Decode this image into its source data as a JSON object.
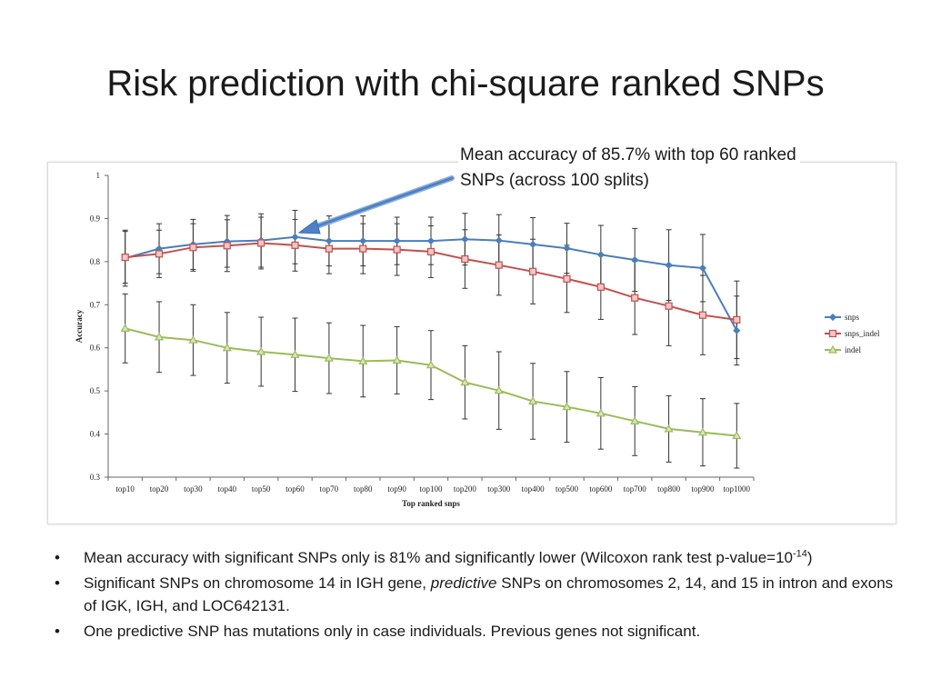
{
  "slide": {
    "title": "Risk prediction with chi-square ranked SNPs",
    "callout": "Mean accuracy of 85.7% with top 60 ranked SNPs (across 100 splits)",
    "bullets": [
      {
        "dot": "•",
        "parts": {
          "a": "Mean accuracy with significant SNPs only is 81% and significantly lower (Wilcoxon rank test p-value=10",
          "sup": "-14",
          "b": ")"
        }
      },
      {
        "dot": "•",
        "parts": {
          "a": "Significant SNPs on chromosome 14 in IGH gene, ",
          "em": "predictive",
          "b": " SNPs on chromosomes 2, 14, and 15 in intron and exons of IGK, IGH, and LOC642131."
        }
      },
      {
        "dot": "•",
        "parts": {
          "a": "One predictive SNP has mutations only in case individuals. Previous genes not significant."
        }
      }
    ]
  },
  "chart_data": {
    "type": "line",
    "title": "",
    "xlabel": "Top ranked snps",
    "ylabel": "Accuracy",
    "ylim": [
      0.3,
      1
    ],
    "yticks": [
      "1",
      "0.9",
      "0.8",
      "0.7",
      "0.6",
      "0.5",
      "0.4",
      "0.3"
    ],
    "legend_position": "right",
    "grid": false,
    "categories": [
      "top10",
      "top20",
      "top30",
      "top40",
      "top50",
      "top60",
      "top70",
      "top80",
      "top90",
      "top100",
      "top200",
      "top300",
      "top400",
      "top500",
      "top600",
      "top700",
      "top800",
      "top900",
      "top1000"
    ],
    "series": [
      {
        "name": "snps",
        "color": "#4a7ebb",
        "marker": "diamond",
        "values": [
          0.808,
          0.83,
          0.84,
          0.847,
          0.849,
          0.857,
          0.848,
          0.848,
          0.848,
          0.848,
          0.852,
          0.849,
          0.84,
          0.831,
          0.816,
          0.804,
          0.792,
          0.785,
          0.64
        ],
        "error": [
          0.065,
          0.058,
          0.058,
          0.06,
          0.062,
          0.062,
          0.058,
          0.058,
          0.055,
          0.055,
          0.06,
          0.06,
          0.062,
          0.058,
          0.068,
          0.073,
          0.082,
          0.078,
          0.08
        ]
      },
      {
        "name": "snps_indel",
        "color": "#c0504d",
        "marker": "square",
        "values": [
          0.81,
          0.818,
          0.833,
          0.837,
          0.843,
          0.838,
          0.83,
          0.83,
          0.828,
          0.823,
          0.806,
          0.792,
          0.777,
          0.76,
          0.741,
          0.716,
          0.697,
          0.676,
          0.665
        ],
        "error": [
          0.06,
          0.055,
          0.055,
          0.06,
          0.06,
          0.06,
          0.058,
          0.058,
          0.06,
          0.06,
          0.068,
          0.07,
          0.075,
          0.078,
          0.075,
          0.085,
          0.092,
          0.092,
          0.09
        ]
      },
      {
        "name": "indel",
        "color": "#9bbb59",
        "marker": "triangle",
        "values": [
          0.645,
          0.625,
          0.618,
          0.6,
          0.591,
          0.584,
          0.576,
          0.569,
          0.571,
          0.56,
          0.52,
          0.501,
          0.476,
          0.463,
          0.448,
          0.43,
          0.412,
          0.404,
          0.396
        ],
        "error": [
          0.08,
          0.082,
          0.082,
          0.082,
          0.08,
          0.085,
          0.082,
          0.083,
          0.078,
          0.08,
          0.085,
          0.09,
          0.088,
          0.082,
          0.083,
          0.08,
          0.077,
          0.078,
          0.075
        ]
      }
    ]
  }
}
